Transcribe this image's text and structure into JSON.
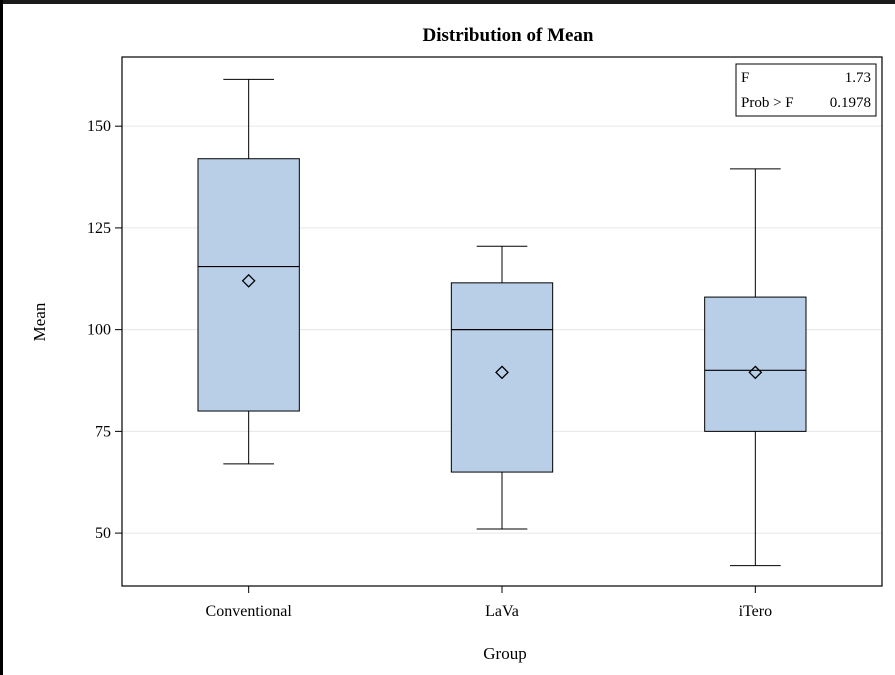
{
  "chart_data": {
    "type": "box",
    "title": "Distribution of Mean",
    "xlabel": "Group",
    "ylabel": "Mean",
    "categories": [
      "Conventional",
      "LaVa",
      "iTero"
    ],
    "ylim": [
      37,
      167
    ],
    "yticks": [
      50,
      75,
      100,
      125,
      150
    ],
    "grid": "horizontal",
    "box_color": "#b9cfe8",
    "boxes": [
      {
        "name": "Conventional",
        "min": 67,
        "q1": 80,
        "median": 115.5,
        "q3": 142,
        "max": 161.5,
        "mean": 112
      },
      {
        "name": "LaVa",
        "min": 51,
        "q1": 65,
        "median": 100,
        "q3": 111.5,
        "max": 120.5,
        "mean": 89.5
      },
      {
        "name": "iTero",
        "min": 42,
        "q1": 75,
        "median": 90,
        "q3": 108,
        "max": 139.5,
        "mean": 89.5
      }
    ],
    "inset_table": {
      "rows": [
        {
          "label": "F",
          "value": "1.73"
        },
        {
          "label": "Prob > F",
          "value": "0.1978"
        }
      ],
      "placement": "top-right"
    }
  }
}
